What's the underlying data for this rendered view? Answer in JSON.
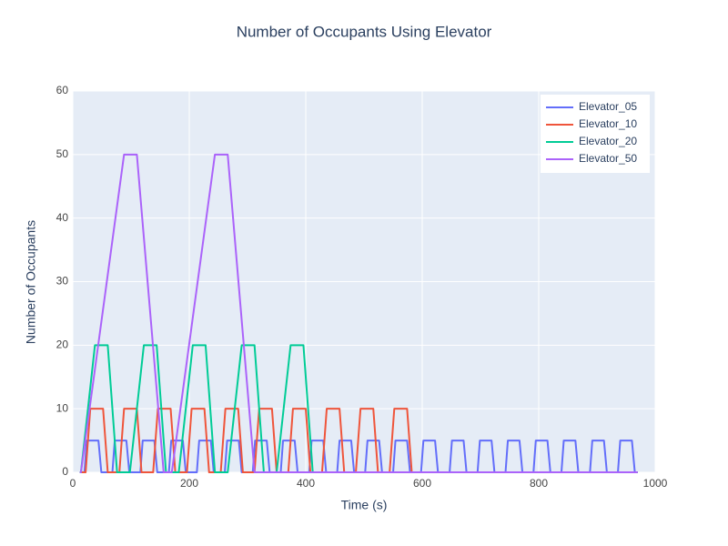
{
  "chart_data": {
    "type": "line",
    "title": "Number of Occupants Using Elevator",
    "xlabel": "Time (s)",
    "ylabel": "Number of Occupants",
    "xlim": [
      0,
      1000
    ],
    "xticks": [
      0,
      200,
      400,
      600,
      800,
      1000
    ],
    "ylim": [
      0,
      60
    ],
    "yticks": [
      0,
      10,
      20,
      30,
      40,
      50,
      60
    ],
    "grid": true,
    "legend": "top-right",
    "series": [
      {
        "name": "Elevator_05",
        "color": "#636efa",
        "x": [
          12,
          20,
          24,
          44,
          49,
          68,
          72,
          92,
          97,
          116,
          120,
          140,
          145,
          165,
          169,
          189,
          194,
          213,
          217,
          237,
          242,
          261,
          265,
          285,
          290,
          309,
          313,
          333,
          338,
          357,
          361,
          381,
          386,
          406,
          410,
          430,
          435,
          454,
          458,
          478,
          483,
          502,
          506,
          526,
          531,
          550,
          554,
          574,
          579,
          598,
          602,
          622,
          627,
          647,
          651,
          671,
          676,
          695,
          699,
          719,
          724,
          743,
          747,
          767,
          772,
          791,
          795,
          815,
          820,
          839,
          843,
          863,
          868,
          888,
          892,
          912,
          917,
          936,
          940,
          960,
          965,
          970
        ],
        "values": [
          0,
          0,
          5,
          5,
          0,
          0,
          5,
          5,
          0,
          0,
          5,
          5,
          0,
          0,
          5,
          5,
          0,
          0,
          5,
          5,
          0,
          0,
          5,
          5,
          0,
          0,
          5,
          5,
          0,
          0,
          5,
          5,
          0,
          0,
          5,
          5,
          0,
          0,
          5,
          5,
          0,
          0,
          5,
          5,
          0,
          0,
          5,
          5,
          0,
          0,
          5,
          5,
          0,
          0,
          5,
          5,
          0,
          0,
          5,
          5,
          0,
          0,
          5,
          5,
          0,
          0,
          5,
          5,
          0,
          0,
          5,
          5,
          0,
          0,
          5,
          5,
          0,
          0,
          5,
          5,
          0,
          0
        ]
      },
      {
        "name": "Elevator_10",
        "color": "#EF553B",
        "x": [
          12,
          22,
          30,
          52,
          60,
          80,
          88,
          110,
          118,
          138,
          146,
          168,
          176,
          196,
          204,
          226,
          234,
          254,
          262,
          284,
          292,
          312,
          320,
          342,
          350,
          370,
          378,
          400,
          408,
          428,
          436,
          458,
          466,
          486,
          494,
          516,
          524,
          544,
          552,
          574,
          582,
          970
        ],
        "values": [
          0,
          0,
          10,
          10,
          0,
          0,
          10,
          10,
          0,
          0,
          10,
          10,
          0,
          0,
          10,
          10,
          0,
          0,
          10,
          10,
          0,
          0,
          10,
          10,
          0,
          0,
          10,
          10,
          0,
          0,
          10,
          10,
          0,
          0,
          10,
          10,
          0,
          0,
          10,
          10,
          0,
          0
        ]
      },
      {
        "name": "Elevator_20",
        "color": "#00cc96",
        "x": [
          12,
          14,
          38,
          60,
          76,
          98,
          122,
          144,
          160,
          182,
          206,
          228,
          244,
          266,
          290,
          312,
          328,
          350,
          374,
          396,
          412,
          970
        ],
        "values": [
          0,
          0,
          20,
          20,
          0,
          0,
          20,
          20,
          0,
          0,
          20,
          20,
          0,
          0,
          20,
          20,
          0,
          0,
          20,
          20,
          0,
          0
        ]
      },
      {
        "name": "Elevator_50",
        "color": "#ab63fa",
        "x": [
          12,
          14,
          88,
          110,
          156,
          170,
          244,
          266,
          312,
          970
        ],
        "values": [
          0,
          0,
          50,
          50,
          0,
          0,
          50,
          50,
          0,
          0
        ]
      }
    ]
  }
}
